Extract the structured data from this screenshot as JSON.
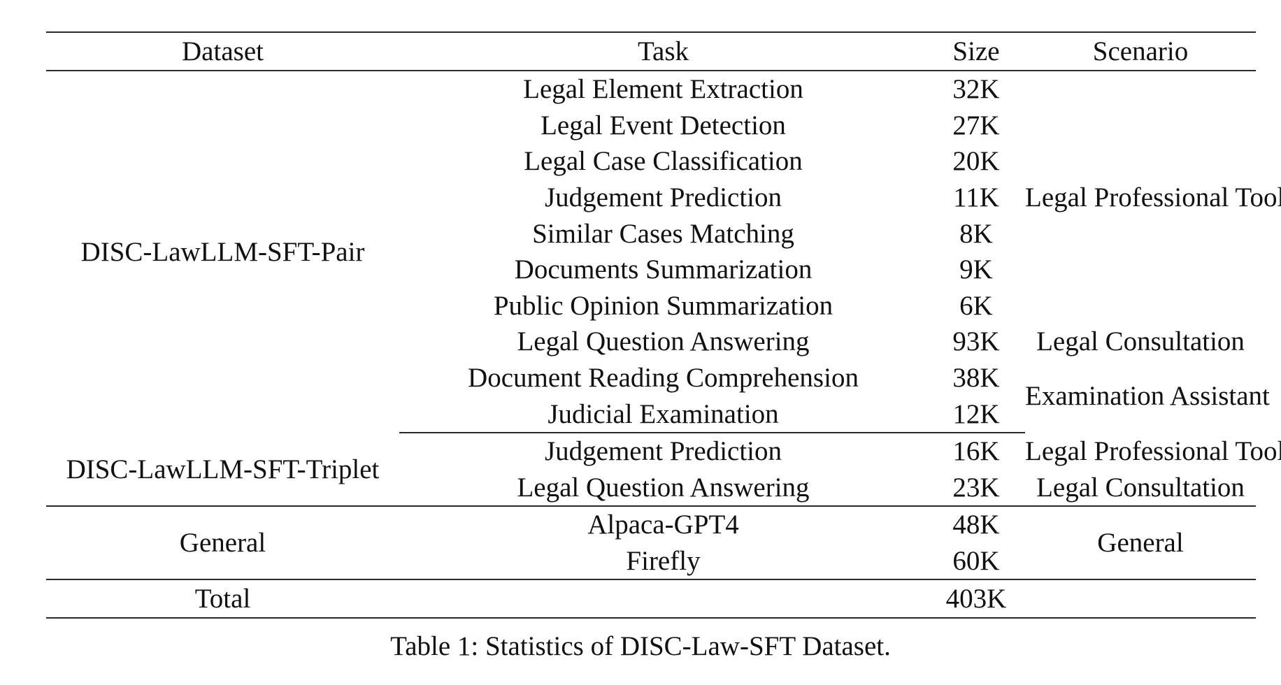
{
  "table": {
    "headers": {
      "dataset": "Dataset",
      "task": "Task",
      "size": "Size",
      "scenario": "Scenario"
    },
    "groups": {
      "pair": {
        "dataset": "DISC-LawLLM-SFT-Pair",
        "rows": [
          {
            "task": "Legal Element Extraction",
            "size": "32K"
          },
          {
            "task": "Legal Event Detection",
            "size": "27K"
          },
          {
            "task": "Legal Case Classification",
            "size": "20K"
          },
          {
            "task": "Judgement Prediction",
            "size": "11K"
          },
          {
            "task": "Similar Cases Matching",
            "size": "8K"
          },
          {
            "task": "Documents Summarization",
            "size": "9K"
          },
          {
            "task": "Public Opinion Summarization",
            "size": "6K"
          },
          {
            "task": "Legal Question Answering",
            "size": "93K"
          },
          {
            "task": "Document Reading Comprehension",
            "size": "38K"
          },
          {
            "task": "Judicial Examination",
            "size": "12K"
          }
        ],
        "scenarios": [
          "Legal Professional Tools",
          "Legal Consultation",
          "Examination Assistant"
        ]
      },
      "triplet": {
        "dataset": "DISC-LawLLM-SFT-Triplet",
        "rows": [
          {
            "task": "Judgement Prediction",
            "size": "16K",
            "scenario": "Legal Professional Tools"
          },
          {
            "task": "Legal Question Answering",
            "size": "23K",
            "scenario": "Legal Consultation"
          }
        ]
      },
      "general": {
        "dataset": "General",
        "rows": [
          {
            "task": "Alpaca-GPT4",
            "size": "48K"
          },
          {
            "task": "Firefly",
            "size": "60K"
          }
        ],
        "scenario": "General"
      }
    },
    "total": {
      "label": "Total",
      "size": "403K"
    }
  },
  "caption": "Table 1: Statistics of DISC-Law-SFT Dataset."
}
